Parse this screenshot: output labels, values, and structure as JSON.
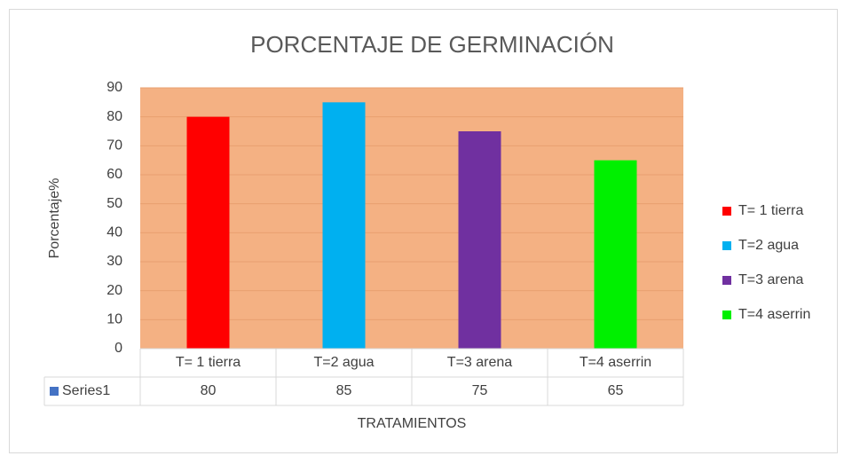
{
  "chart_data": {
    "type": "bar",
    "title": "PORCENTAJE DE GERMINACIÓN",
    "y_label": "Porcentaje%",
    "x_label": "TRATAMIENTOS",
    "categories": [
      "T= 1 tierra",
      "T=2 agua",
      "T=3 arena",
      "T=4 aserrin"
    ],
    "colors": [
      "#ff0000",
      "#00b0f0",
      "#7030a0",
      "#00f000"
    ],
    "series": [
      {
        "name": "Series1",
        "color": "#4472c4",
        "values": [
          80,
          85,
          75,
          65
        ]
      }
    ],
    "plot_background": "#f4b183",
    "ylim": [
      0,
      90
    ],
    "yticks": [
      0,
      10,
      20,
      30,
      40,
      50,
      60,
      70,
      80,
      90
    ],
    "grid": true,
    "legend": "right",
    "data_table": true
  }
}
